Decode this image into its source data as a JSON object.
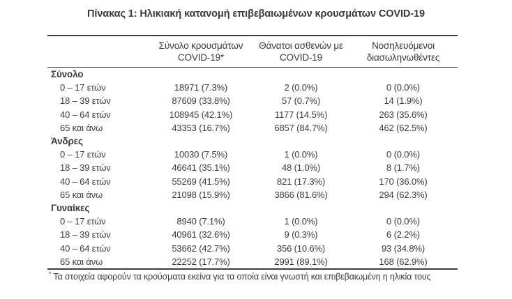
{
  "title": "Πίνακας 1: Ηλικιακή κατανομή επιβεβαιωμένων κρουσμάτων COVID-19",
  "table": {
    "columns": {
      "cases": {
        "line1": "Σύνολο κρουσμάτων",
        "line2": "COVID-19*"
      },
      "deaths": {
        "line1": "Θάνατοι ασθενών με",
        "line2": "COVID-19"
      },
      "intubated": {
        "line1": "Νοσηλευόμενοι",
        "line2": "διασωληνωθέντες"
      }
    },
    "sections": [
      {
        "header": "Σύνολο",
        "rows": [
          {
            "label": "0 – 17 ετών",
            "cases": "18971 (7.3%)",
            "deaths": "2 (0.0%)",
            "intubated": "0 (0.0%)"
          },
          {
            "label": "18 – 39 ετών",
            "cases": "87609 (33.8%)",
            "deaths": "57 (0.7%)",
            "intubated": "14 (1.9%)"
          },
          {
            "label": "40 – 64 ετών",
            "cases": "108945 (42.1%)",
            "deaths": "1177 (14.5%)",
            "intubated": "263 (35.6%)"
          },
          {
            "label": "65 και άνω",
            "cases": "43353 (16.7%)",
            "deaths": "6857 (84.7%)",
            "intubated": "462 (62.5%)"
          }
        ]
      },
      {
        "header": "Άνδρες",
        "rows": [
          {
            "label": "0 – 17 ετών",
            "cases": "10030 (7.5%)",
            "deaths": "1 (0.0%)",
            "intubated": "0 (0.0%)"
          },
          {
            "label": "18 – 39 ετών",
            "cases": "46641 (35.1%)",
            "deaths": "48 (1.0%)",
            "intubated": "8 (1.7%)"
          },
          {
            "label": "40 – 64 ετών",
            "cases": "55269 (41.5%)",
            "deaths": "821 (17.3%)",
            "intubated": "170 (36.0%)"
          },
          {
            "label": "65 και άνω",
            "cases": "21098 (15.9%)",
            "deaths": "3866 (81.6%)",
            "intubated": "294 (62.3%)"
          }
        ]
      },
      {
        "header": "Γυναίκες",
        "rows": [
          {
            "label": "0 – 17 ετών",
            "cases": "8940 (7.1%)",
            "deaths": "1 (0.0%)",
            "intubated": "0 (0.0%)"
          },
          {
            "label": "18 – 39 ετών",
            "cases": "40961 (32.6%)",
            "deaths": "9 (0.3%)",
            "intubated": "6 (2.2%)"
          },
          {
            "label": "40 – 64 ετών",
            "cases": "53662 (42.7%)",
            "deaths": "356 (10.6%)",
            "intubated": "93 (34.8%)"
          },
          {
            "label": "65 και άνω",
            "cases": "22252 (17.7%)",
            "deaths": "2991 (89.1%)",
            "intubated": "168 (62.9%)"
          }
        ]
      }
    ]
  },
  "footnote": {
    "marker": "*",
    "text": "Τα στοιχεία αφορούν τα κρούσματα εκείνα για τα οποία είναι γνωστή και επιβεβαιωμένη η ηλικία τους"
  },
  "colors": {
    "text": "#3b3b3b",
    "rule": "#3f3f3f",
    "background": "#ffffff"
  }
}
